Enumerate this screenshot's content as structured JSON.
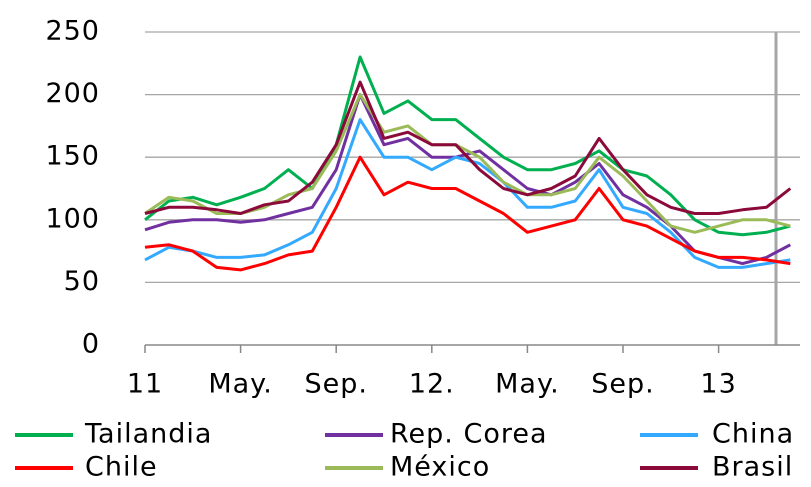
{
  "chart_data": {
    "type": "line",
    "categories": [
      "11",
      null,
      null,
      null,
      "May.",
      null,
      null,
      null,
      "Sep.",
      null,
      null,
      null,
      "12.",
      null,
      null,
      null,
      "May.",
      null,
      null,
      null,
      "Sep.",
      null,
      null,
      null,
      "13",
      null,
      null,
      null
    ],
    "ylim": [
      0,
      250
    ],
    "yticks": [
      0,
      50,
      100,
      150,
      200,
      250
    ],
    "grid": true,
    "series": [
      {
        "name": "Tailandia",
        "color": "#00b050",
        "values": [
          100,
          115,
          118,
          112,
          118,
          125,
          140,
          125,
          160,
          230,
          185,
          195,
          180,
          180,
          165,
          150,
          140,
          140,
          145,
          155,
          140,
          135,
          120,
          100,
          90,
          88,
          90,
          95
        ]
      },
      {
        "name": "Rep. Corea",
        "color": "#7030a0",
        "values": [
          92,
          98,
          100,
          100,
          98,
          100,
          105,
          110,
          140,
          200,
          160,
          165,
          150,
          150,
          155,
          140,
          125,
          120,
          130,
          145,
          120,
          110,
          95,
          75,
          70,
          65,
          70,
          80
        ]
      },
      {
        "name": "China",
        "color": "#33aaff",
        "values": [
          68,
          78,
          75,
          70,
          70,
          72,
          80,
          90,
          125,
          180,
          150,
          150,
          140,
          150,
          145,
          130,
          110,
          110,
          115,
          140,
          110,
          105,
          90,
          70,
          62,
          62,
          65,
          68
        ]
      },
      {
        "name": "Chile",
        "color": "#ff0000",
        "values": [
          78,
          80,
          75,
          62,
          60,
          65,
          72,
          75,
          110,
          150,
          120,
          130,
          125,
          125,
          115,
          105,
          90,
          95,
          100,
          125,
          100,
          95,
          85,
          75,
          70,
          70,
          68,
          65
        ]
      },
      {
        "name": "México",
        "color": "#9bbb59",
        "values": [
          105,
          118,
          115,
          105,
          105,
          110,
          120,
          125,
          155,
          200,
          170,
          175,
          160,
          160,
          150,
          130,
          120,
          120,
          125,
          150,
          135,
          115,
          95,
          90,
          95,
          100,
          100,
          95
        ]
      },
      {
        "name": "Brasil",
        "color": "#8b0a3a",
        "values": [
          105,
          110,
          110,
          108,
          105,
          112,
          115,
          130,
          160,
          210,
          165,
          170,
          160,
          160,
          140,
          125,
          120,
          125,
          135,
          165,
          140,
          120,
          110,
          105,
          105,
          108,
          110,
          125
        ]
      }
    ]
  }
}
